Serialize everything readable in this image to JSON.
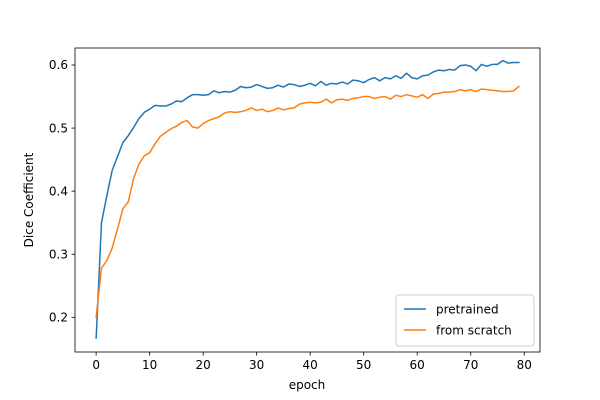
{
  "chart_data": {
    "type": "line",
    "title": "",
    "xlabel": "epoch",
    "ylabel": "Dice Coefficient",
    "xlim": [
      -3.95,
      82.95
    ],
    "ylim": [
      0.145,
      0.627
    ],
    "xticks": [
      0,
      10,
      20,
      30,
      40,
      50,
      60,
      70,
      80
    ],
    "yticks": [
      0.2,
      0.3,
      0.4,
      0.5,
      0.6
    ],
    "grid": false,
    "legend_position": "lower-right",
    "x": [
      0,
      1,
      2,
      3,
      4,
      5,
      6,
      7,
      8,
      9,
      10,
      11,
      12,
      13,
      14,
      15,
      16,
      17,
      18,
      19,
      20,
      21,
      22,
      23,
      24,
      25,
      26,
      27,
      28,
      29,
      30,
      31,
      32,
      33,
      34,
      35,
      36,
      37,
      38,
      39,
      40,
      41,
      42,
      43,
      44,
      45,
      46,
      47,
      48,
      49,
      50,
      51,
      52,
      53,
      54,
      55,
      56,
      57,
      58,
      59,
      60,
      61,
      62,
      63,
      64,
      65,
      66,
      67,
      68,
      69,
      70,
      71,
      72,
      73,
      74,
      75,
      76,
      77,
      78,
      79
    ],
    "series": [
      {
        "name": "pretrained",
        "color": "#1f77b4",
        "values": [
          0.167,
          0.35,
          0.393,
          0.433,
          0.455,
          0.477,
          0.488,
          0.501,
          0.515,
          0.525,
          0.53,
          0.536,
          0.535,
          0.535,
          0.538,
          0.543,
          0.542,
          0.548,
          0.553,
          0.553,
          0.552,
          0.553,
          0.559,
          0.556,
          0.558,
          0.557,
          0.56,
          0.566,
          0.564,
          0.565,
          0.569,
          0.566,
          0.563,
          0.564,
          0.568,
          0.565,
          0.57,
          0.569,
          0.566,
          0.568,
          0.571,
          0.567,
          0.574,
          0.568,
          0.571,
          0.57,
          0.573,
          0.57,
          0.576,
          0.575,
          0.572,
          0.577,
          0.58,
          0.575,
          0.58,
          0.578,
          0.583,
          0.579,
          0.587,
          0.58,
          0.578,
          0.583,
          0.584,
          0.589,
          0.592,
          0.591,
          0.593,
          0.592,
          0.599,
          0.6,
          0.598,
          0.591,
          0.601,
          0.598,
          0.601,
          0.601,
          0.607,
          0.603,
          0.604,
          0.604
        ]
      },
      {
        "name": "from scratch",
        "color": "#ff7f0e",
        "values": [
          0.2,
          0.278,
          0.29,
          0.31,
          0.34,
          0.372,
          0.383,
          0.42,
          0.443,
          0.456,
          0.461,
          0.475,
          0.487,
          0.493,
          0.499,
          0.503,
          0.509,
          0.512,
          0.502,
          0.5,
          0.507,
          0.512,
          0.515,
          0.518,
          0.524,
          0.526,
          0.525,
          0.526,
          0.528,
          0.532,
          0.528,
          0.53,
          0.526,
          0.528,
          0.532,
          0.529,
          0.531,
          0.532,
          0.538,
          0.54,
          0.541,
          0.54,
          0.541,
          0.546,
          0.54,
          0.545,
          0.546,
          0.544,
          0.547,
          0.548,
          0.55,
          0.55,
          0.547,
          0.549,
          0.55,
          0.546,
          0.552,
          0.55,
          0.553,
          0.551,
          0.549,
          0.553,
          0.547,
          0.554,
          0.555,
          0.557,
          0.557,
          0.558,
          0.561,
          0.559,
          0.561,
          0.558,
          0.562,
          0.561,
          0.56,
          0.559,
          0.558,
          0.558,
          0.559,
          0.566
        ]
      }
    ]
  }
}
